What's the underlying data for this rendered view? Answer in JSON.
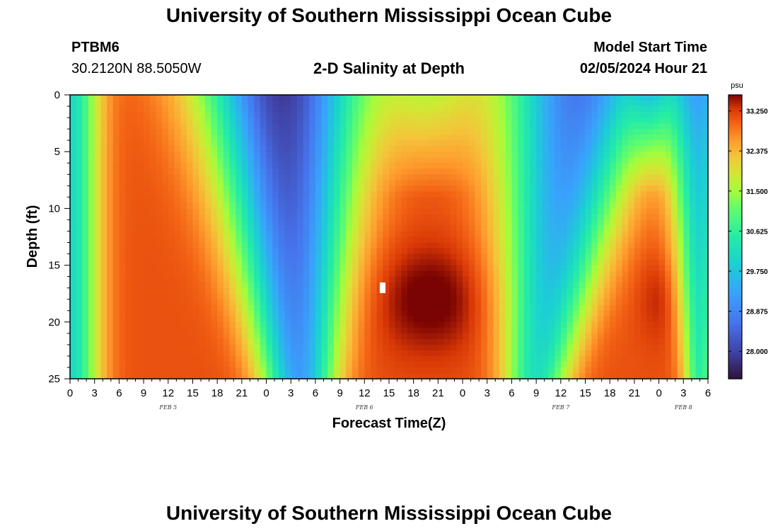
{
  "header": {
    "title": "University of Southern Mississippi Ocean Cube",
    "station": "PTBM6",
    "coordinates": "30.2120N  88.5050W",
    "plot_title": "2-D Salinity at Depth",
    "model_start_label": "Model Start Time",
    "model_start_value": "02/05/2024 Hour 21"
  },
  "footer": {
    "title": "University of Southern Mississippi Ocean Cube"
  },
  "chart_data": {
    "type": "heatmap",
    "title": "2-D Salinity at Depth",
    "xlabel": "Forecast Time(Z)",
    "ylabel": "Depth (ft)",
    "x_range_hours": [
      0,
      78
    ],
    "ylim": [
      0,
      25
    ],
    "x_tick_labels": [
      "0",
      "3",
      "6",
      "9",
      "12",
      "15",
      "18",
      "21",
      "0",
      "3",
      "6",
      "9",
      "12",
      "15",
      "18",
      "21",
      "0",
      "3",
      "6",
      "9",
      "12",
      "15",
      "18",
      "21",
      "0",
      "3",
      "6"
    ],
    "y_ticks": [
      0,
      5,
      10,
      15,
      20,
      25
    ],
    "date_labels": [
      {
        "text": "FEB 5",
        "hour": 12
      },
      {
        "text": "FEB 6",
        "hour": 36
      },
      {
        "text": "FEB 7",
        "hour": 60
      },
      {
        "text": "FEB 8",
        "hour": 75
      }
    ],
    "colorbar": {
      "unit": "psu",
      "min": 27.4,
      "max": 33.6,
      "ticks": [
        "33.250",
        "32.375",
        "31.500",
        "30.625",
        "29.750",
        "28.875",
        "28.000"
      ]
    },
    "features": [
      {
        "name": "high salinity band",
        "hour_range": [
          6,
          17
        ],
        "salinity": 33.1
      },
      {
        "name": "low salinity water",
        "hour_range": [
          22,
          34
        ],
        "salinity": 27.8
      },
      {
        "name": "high salinity core",
        "hour_range": [
          36,
          54
        ],
        "depth_ft": 17,
        "salinity": 33.6
      },
      {
        "name": "low salinity water",
        "hour_range": [
          56,
          66
        ],
        "salinity": 28.6
      },
      {
        "name": "high salinity lens",
        "hour_range": [
          68,
          74
        ],
        "depth_ft": 18,
        "salinity": 33.0
      }
    ]
  }
}
